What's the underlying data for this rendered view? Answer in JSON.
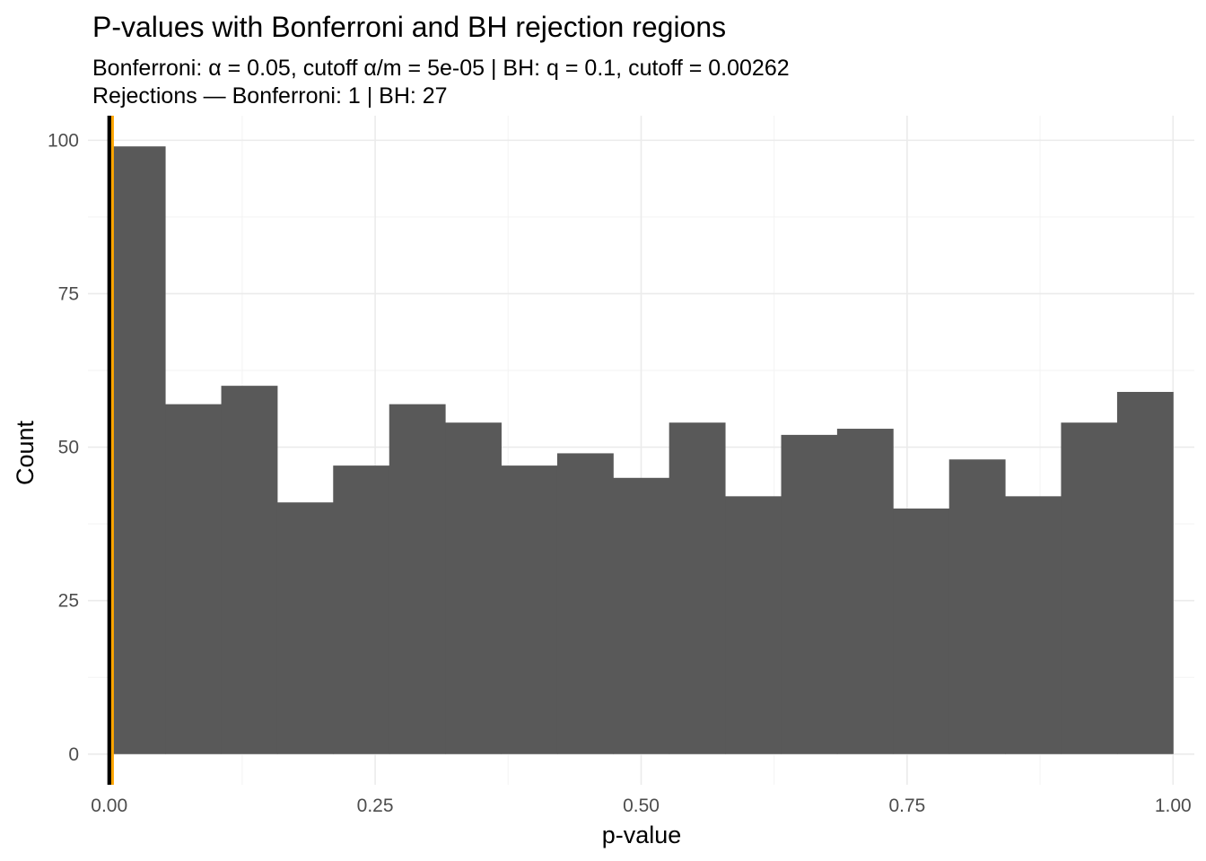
{
  "chart_data": {
    "type": "bar",
    "title": "P-values with Bonferroni and BH rejection regions",
    "subtitle": [
      "Bonferroni: α = 0.05, cutoff α/m = 5e-05  |  BH: q = 0.1, cutoff = 0.00262",
      "Rejections — Bonferroni: 1  |  BH: 27"
    ],
    "xlabel": "p-value",
    "ylabel": "Count",
    "xlim": [
      -0.02,
      1.02
    ],
    "ylim": [
      -5,
      104
    ],
    "x_ticks": [
      {
        "value": 0.0,
        "label": "0.00"
      },
      {
        "value": 0.25,
        "label": "0.25"
      },
      {
        "value": 0.5,
        "label": "0.50"
      },
      {
        "value": 0.75,
        "label": "0.75"
      },
      {
        "value": 1.0,
        "label": "1.00"
      }
    ],
    "y_ticks": [
      {
        "value": 0,
        "label": "0"
      },
      {
        "value": 25,
        "label": "25"
      },
      {
        "value": 50,
        "label": "50"
      },
      {
        "value": 75,
        "label": "75"
      },
      {
        "value": 100,
        "label": "100"
      }
    ],
    "bins": [
      {
        "start": 0.0,
        "end": 0.0526,
        "count": 99
      },
      {
        "start": 0.0526,
        "end": 0.1053,
        "count": 57
      },
      {
        "start": 0.1053,
        "end": 0.1579,
        "count": 60
      },
      {
        "start": 0.1579,
        "end": 0.2105,
        "count": 41
      },
      {
        "start": 0.2105,
        "end": 0.2632,
        "count": 47
      },
      {
        "start": 0.2632,
        "end": 0.3158,
        "count": 57
      },
      {
        "start": 0.3158,
        "end": 0.3684,
        "count": 54
      },
      {
        "start": 0.3684,
        "end": 0.4211,
        "count": 47
      },
      {
        "start": 0.4211,
        "end": 0.4737,
        "count": 49
      },
      {
        "start": 0.4737,
        "end": 0.5263,
        "count": 45
      },
      {
        "start": 0.5263,
        "end": 0.5789,
        "count": 54
      },
      {
        "start": 0.5789,
        "end": 0.6316,
        "count": 42
      },
      {
        "start": 0.6316,
        "end": 0.6842,
        "count": 52
      },
      {
        "start": 0.6842,
        "end": 0.7368,
        "count": 53
      },
      {
        "start": 0.7368,
        "end": 0.7895,
        "count": 40
      },
      {
        "start": 0.7895,
        "end": 0.8421,
        "count": 48
      },
      {
        "start": 0.8421,
        "end": 0.8947,
        "count": 42
      },
      {
        "start": 0.8947,
        "end": 0.9474,
        "count": 54
      },
      {
        "start": 0.9474,
        "end": 1.0,
        "count": 59
      }
    ],
    "cutoff_lines": [
      {
        "label": "Bonferroni cutoff",
        "value": 5e-05,
        "color": "#000000"
      },
      {
        "label": "BH cutoff",
        "value": 0.00262,
        "color": "#FFA500"
      }
    ],
    "bar_color": "#595959",
    "grid": true,
    "legend": "none"
  }
}
